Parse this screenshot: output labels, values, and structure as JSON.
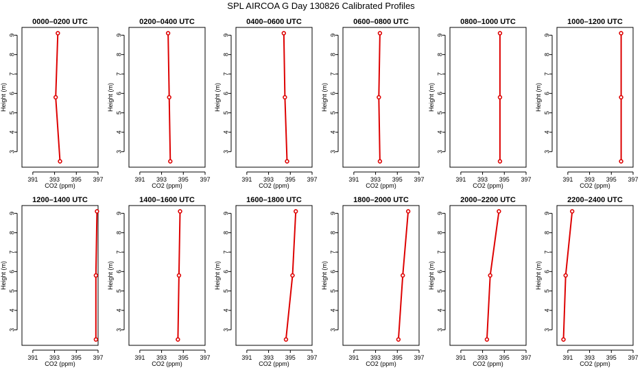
{
  "title": "SPL AIRCOA G  Day 130826  Calibrated Profiles",
  "colors": {
    "line": "#dd0000",
    "axis": "#000000"
  },
  "chart_data": [
    {
      "type": "line",
      "title": "0000–0200 UTC",
      "xlabel": "CO2 (ppm)",
      "ylabel": "Height (m)",
      "xlim": [
        390,
        397
      ],
      "ylim": [
        2.2,
        9.4
      ],
      "xticks": [
        391,
        393,
        395,
        397
      ],
      "yticks": [
        3,
        4,
        5,
        6,
        7,
        8,
        9
      ],
      "grid": false,
      "series": [
        {
          "x": [
            393.5,
            393.1,
            393.3
          ],
          "y": [
            2.5,
            5.8,
            9.1
          ]
        }
      ]
    },
    {
      "type": "line",
      "title": "0200–0400 UTC",
      "xlabel": "CO2 (ppm)",
      "ylabel": "Height (m)",
      "xlim": [
        390,
        397
      ],
      "ylim": [
        2.2,
        9.4
      ],
      "xticks": [
        391,
        393,
        395,
        397
      ],
      "yticks": [
        3,
        4,
        5,
        6,
        7,
        8,
        9
      ],
      "grid": false,
      "series": [
        {
          "x": [
            393.8,
            393.7,
            393.6
          ],
          "y": [
            2.5,
            5.8,
            9.1
          ]
        }
      ]
    },
    {
      "type": "line",
      "title": "0400–0600 UTC",
      "xlabel": "CO2 (ppm)",
      "ylabel": "Height (m)",
      "xlim": [
        390,
        397
      ],
      "ylim": [
        2.2,
        9.4
      ],
      "xticks": [
        391,
        393,
        395,
        397
      ],
      "yticks": [
        3,
        4,
        5,
        6,
        7,
        8,
        9
      ],
      "grid": false,
      "series": [
        {
          "x": [
            394.7,
            394.5,
            394.4
          ],
          "y": [
            2.5,
            5.8,
            9.1
          ]
        }
      ]
    },
    {
      "type": "line",
      "title": "0600–0800 UTC",
      "xlabel": "CO2 (ppm)",
      "ylabel": "Height (m)",
      "xlim": [
        390,
        397
      ],
      "ylim": [
        2.2,
        9.4
      ],
      "xticks": [
        391,
        393,
        395,
        397
      ],
      "yticks": [
        3,
        4,
        5,
        6,
        7,
        8,
        9
      ],
      "grid": false,
      "series": [
        {
          "x": [
            393.4,
            393.3,
            393.4
          ],
          "y": [
            2.5,
            5.8,
            9.1
          ]
        }
      ]
    },
    {
      "type": "line",
      "title": "0800–1000 UTC",
      "xlabel": "CO2 (ppm)",
      "ylabel": "Height (m)",
      "xlim": [
        390,
        397
      ],
      "ylim": [
        2.2,
        9.4
      ],
      "xticks": [
        391,
        393,
        395,
        397
      ],
      "yticks": [
        3,
        4,
        5,
        6,
        7,
        8,
        9
      ],
      "grid": false,
      "series": [
        {
          "x": [
            394.6,
            394.6,
            394.6
          ],
          "y": [
            2.5,
            5.8,
            9.1
          ]
        }
      ]
    },
    {
      "type": "line",
      "title": "1000–1200 UTC",
      "xlabel": "CO2 (ppm)",
      "ylabel": "Height (m)",
      "xlim": [
        390,
        397
      ],
      "ylim": [
        2.2,
        9.4
      ],
      "xticks": [
        391,
        393,
        395,
        397
      ],
      "yticks": [
        3,
        4,
        5,
        6,
        7,
        8,
        9
      ],
      "grid": false,
      "series": [
        {
          "x": [
            395.9,
            395.9,
            395.9
          ],
          "y": [
            2.5,
            5.8,
            9.1
          ]
        }
      ]
    },
    {
      "type": "line",
      "title": "1200–1400 UTC",
      "xlabel": "CO2 (ppm)",
      "ylabel": "Height (m)",
      "xlim": [
        390,
        397
      ],
      "ylim": [
        2.2,
        9.4
      ],
      "xticks": [
        391,
        393,
        395,
        397
      ],
      "yticks": [
        3,
        4,
        5,
        6,
        7,
        8,
        9
      ],
      "grid": false,
      "series": [
        {
          "x": [
            396.8,
            396.8,
            396.9
          ],
          "y": [
            2.5,
            5.8,
            9.1
          ]
        }
      ]
    },
    {
      "type": "line",
      "title": "1400–1600 UTC",
      "xlabel": "CO2 (ppm)",
      "ylabel": "Height (m)",
      "xlim": [
        390,
        397
      ],
      "ylim": [
        2.2,
        9.4
      ],
      "xticks": [
        391,
        393,
        395,
        397
      ],
      "yticks": [
        3,
        4,
        5,
        6,
        7,
        8,
        9
      ],
      "grid": false,
      "series": [
        {
          "x": [
            394.5,
            394.6,
            394.7
          ],
          "y": [
            2.5,
            5.8,
            9.1
          ]
        }
      ]
    },
    {
      "type": "line",
      "title": "1600–1800 UTC",
      "xlabel": "CO2 (ppm)",
      "ylabel": "Height (m)",
      "xlim": [
        390,
        397
      ],
      "ylim": [
        2.2,
        9.4
      ],
      "xticks": [
        391,
        393,
        395,
        397
      ],
      "yticks": [
        3,
        4,
        5,
        6,
        7,
        8,
        9
      ],
      "grid": false,
      "series": [
        {
          "x": [
            394.6,
            395.2,
            395.5
          ],
          "y": [
            2.5,
            5.8,
            9.1
          ]
        }
      ]
    },
    {
      "type": "line",
      "title": "1800–2000 UTC",
      "xlabel": "CO2 (ppm)",
      "ylabel": "Height (m)",
      "xlim": [
        390,
        397
      ],
      "ylim": [
        2.2,
        9.4
      ],
      "xticks": [
        391,
        393,
        395,
        397
      ],
      "yticks": [
        3,
        4,
        5,
        6,
        7,
        8,
        9
      ],
      "grid": false,
      "series": [
        {
          "x": [
            395.1,
            395.5,
            396.0
          ],
          "y": [
            2.5,
            5.8,
            9.1
          ]
        }
      ]
    },
    {
      "type": "line",
      "title": "2000–2200 UTC",
      "xlabel": "CO2 (ppm)",
      "ylabel": "Height (m)",
      "xlim": [
        390,
        397
      ],
      "ylim": [
        2.2,
        9.4
      ],
      "xticks": [
        391,
        393,
        395,
        397
      ],
      "yticks": [
        3,
        4,
        5,
        6,
        7,
        8,
        9
      ],
      "grid": false,
      "series": [
        {
          "x": [
            393.4,
            393.7,
            394.5
          ],
          "y": [
            2.5,
            5.8,
            9.1
          ]
        }
      ]
    },
    {
      "type": "line",
      "title": "2200–2400 UTC",
      "xlabel": "CO2 (ppm)",
      "ylabel": "Height (m)",
      "xlim": [
        390,
        397
      ],
      "ylim": [
        2.2,
        9.4
      ],
      "xticks": [
        391,
        393,
        395,
        397
      ],
      "yticks": [
        3,
        4,
        5,
        6,
        7,
        8,
        9
      ],
      "grid": false,
      "series": [
        {
          "x": [
            390.6,
            390.8,
            391.4
          ],
          "y": [
            2.5,
            5.8,
            9.1
          ]
        }
      ]
    }
  ]
}
